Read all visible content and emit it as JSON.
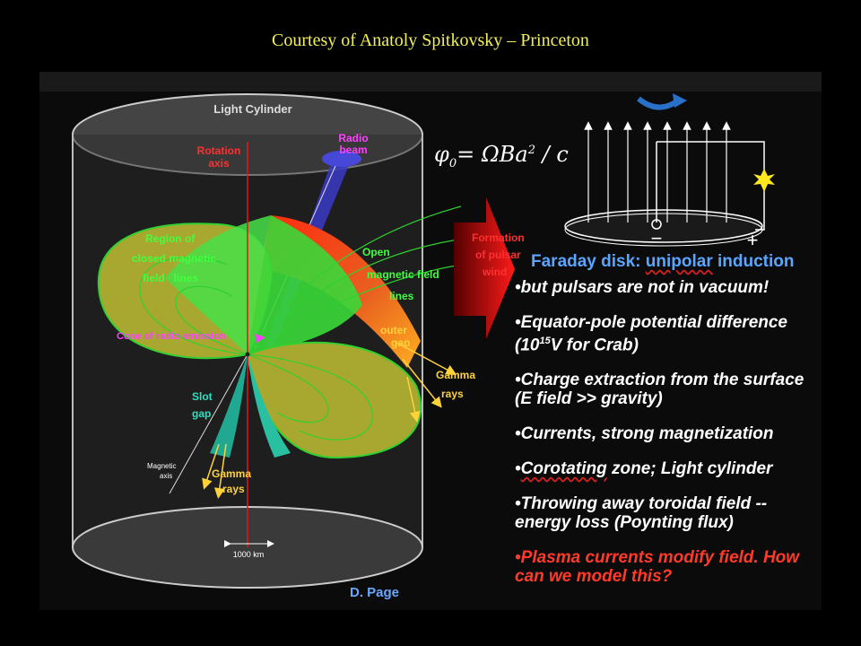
{
  "slide": {
    "courtesy": "Courtesy of Anatoly Spitkovsky – Princeton"
  },
  "diagram": {
    "light_cylinder": "Light Cylinder",
    "rotation_axis": [
      "Rotation",
      "axis"
    ],
    "radio_beam": [
      "Radio",
      "beam"
    ],
    "closed_lines": [
      "Region of",
      "closed magnetic",
      "field   lines"
    ],
    "open_lines": [
      "Open",
      "magnetic field",
      "lines"
    ],
    "pulsar_wind": [
      "Formation",
      "of pulsar",
      "wind"
    ],
    "cone_radio": "Cone of radio emission",
    "outer_gap": [
      "outer",
      "gap"
    ],
    "gamma_rays_right": [
      "Gamma",
      "rays"
    ],
    "slot_gap": [
      "Slot",
      "gap"
    ],
    "magnetic_axis": [
      "Magnetic",
      "axis"
    ],
    "gamma_rays_left": [
      "Gamma",
      "rays"
    ],
    "scale": "1000 km",
    "credit": "D. Page"
  },
  "formula": {
    "lhs": "φ",
    "lhs_sub": "0",
    "rhs_main": "= ΩBa",
    "rhs_sup": "2",
    "rhs_tail": " / c"
  },
  "disk": {
    "minus": "−",
    "plus": "+"
  },
  "faraday": {
    "title_a": "Faraday disk: ",
    "title_b": "unipolar",
    "title_c": " induction"
  },
  "bullets": [
    {
      "text": "•but pulsars are not in vacuum!"
    },
    {
      "text_a": "•Equator-pole potential difference (10",
      "sup": "15",
      "text_b": "V for Crab)"
    },
    {
      "text": "•Charge extraction from the surface (E field >> gravity)"
    },
    {
      "text": "•Currents, strong magnetization"
    },
    {
      "text_a": "•",
      "squig": "Corotating",
      "text_b": " zone; Light cylinder"
    },
    {
      "text": "•Throwing away toroidal field -- energy loss (Poynting flux)"
    },
    {
      "text": "•Plasma currents modify field. How can we model this?"
    }
  ],
  "colors": {
    "title": "#f2ef5a",
    "blue_heading": "#5aa6ff",
    "red_text": "#ff3a2a",
    "closed_region": "#a8a830",
    "open_region": "#38d838"
  }
}
